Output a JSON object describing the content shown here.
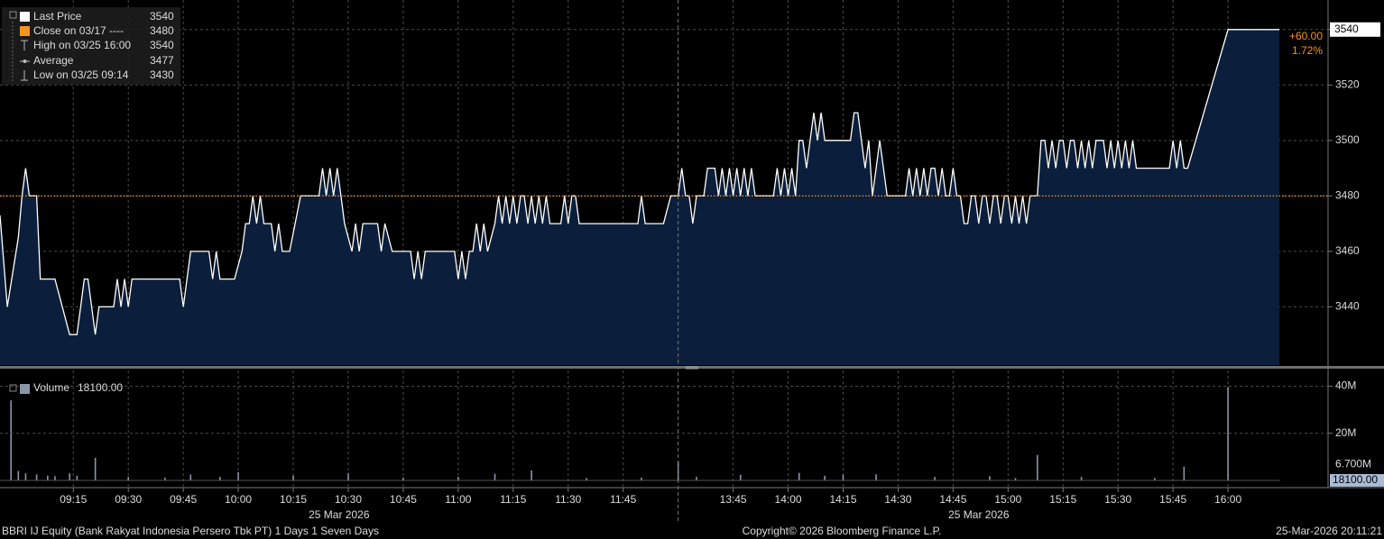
{
  "chart_data": [
    {
      "type": "area",
      "legend": [
        {
          "name": "Last Price",
          "value": 3540
        },
        {
          "name": "Close on 03/17 ----",
          "value": 3480
        },
        {
          "name": "High on 03/25 16:00",
          "value": 3540
        },
        {
          "name": "Average",
          "value": 3477
        },
        {
          "name": "Low on 03/25 09:14",
          "value": 3430
        }
      ],
      "change": {
        "value": 60,
        "label": "+60.00"
      },
      "change_pct": {
        "value": 1.72,
        "label": "1.72%"
      },
      "xlim": [
        "08:55",
        "16:14"
      ],
      "xbreak": [
        "12:00",
        "13:30"
      ],
      "ylim": [
        3419,
        3550
      ],
      "yticks": [
        3440,
        3460,
        3480,
        3500,
        3520,
        3540
      ],
      "grid": true,
      "x": [
        "08:55",
        "08:57",
        "09:00",
        "09:01",
        "09:02",
        "09:03",
        "09:05",
        "09:06",
        "09:10",
        "09:14",
        "09:16",
        "09:17",
        "09:18",
        "09:19",
        "09:20",
        "09:21",
        "09:22",
        "09:26",
        "09:27",
        "09:28",
        "09:29",
        "09:30",
        "09:31",
        "09:44",
        "09:45",
        "09:47",
        "09:52",
        "09:53",
        "09:54",
        "09:55",
        "09:59",
        "10:01",
        "10:02",
        "10:03",
        "10:04",
        "10:05",
        "10:06",
        "10:07",
        "10:09",
        "10:10",
        "10:11",
        "10:12",
        "10:14",
        "10:17",
        "10:22",
        "10:23",
        "10:24",
        "10:25",
        "10:26",
        "10:27",
        "10:28",
        "10:29",
        "10:31",
        "10:32",
        "10:33",
        "10:34",
        "10:38",
        "10:39",
        "10:40",
        "10:42",
        "10:44",
        "10:47",
        "10:48",
        "10:49",
        "10:50",
        "10:51",
        "10:59",
        "11:00",
        "11:01",
        "11:02",
        "11:03",
        "11:04",
        "11:05",
        "11:06",
        "11:07",
        "11:08",
        "11:10",
        "11:11",
        "11:12",
        "11:13",
        "11:14",
        "11:15",
        "11:16",
        "11:17",
        "11:18",
        "11:19",
        "11:20",
        "11:21",
        "11:22",
        "11:23",
        "11:24",
        "11:25",
        "11:28",
        "11:29",
        "11:30",
        "11:31",
        "11:32",
        "11:33",
        "11:49",
        "11:50",
        "11:51",
        "11:56",
        "11:58",
        "12:00",
        "13:30",
        "13:31",
        "13:32",
        "13:33",
        "13:34",
        "13:35",
        "13:37",
        "13:38",
        "13:40",
        "13:41",
        "13:42",
        "13:43",
        "13:44",
        "13:45",
        "13:46",
        "13:47",
        "13:48",
        "13:49",
        "13:50",
        "13:51",
        "13:56",
        "13:57",
        "13:58",
        "13:59",
        "14:00",
        "14:01",
        "14:02",
        "14:03",
        "14:04",
        "14:05",
        "14:06",
        "14:07",
        "14:08",
        "14:09",
        "14:10",
        "14:17",
        "14:18",
        "14:19",
        "14:20",
        "14:21",
        "14:22",
        "14:23",
        "14:24",
        "14:25",
        "14:26",
        "14:27",
        "14:32",
        "14:33",
        "14:34",
        "14:35",
        "14:36",
        "14:37",
        "14:38",
        "14:39",
        "14:40",
        "14:41",
        "14:42",
        "14:43",
        "14:44",
        "14:45",
        "14:46",
        "14:47",
        "14:48",
        "14:49",
        "14:50",
        "14:51",
        "14:52",
        "14:53",
        "14:54",
        "14:55",
        "14:56",
        "14:57",
        "14:58",
        "14:59",
        "15:00",
        "15:01",
        "15:02",
        "15:03",
        "15:04",
        "15:05",
        "15:06",
        "15:08",
        "15:09",
        "15:10",
        "15:11",
        "15:12",
        "15:13",
        "15:14",
        "15:15",
        "15:16",
        "15:17",
        "15:18",
        "15:19",
        "15:20",
        "15:21",
        "15:22",
        "15:23",
        "15:24",
        "15:26",
        "15:27",
        "15:28",
        "15:29",
        "15:30",
        "15:31",
        "15:32",
        "15:33",
        "15:34",
        "15:35",
        "15:44",
        "15:45",
        "15:46",
        "15:47",
        "15:48",
        "15:49",
        "16:00",
        "16:14"
      ],
      "series": [
        {
          "name": "Last Price",
          "color": "#ffffff",
          "fill": "#0b1f3c",
          "values": [
            3473,
            3440,
            3465,
            3480,
            3490,
            3480,
            3480,
            3450,
            3450,
            3430,
            3430,
            3440,
            3450,
            3450,
            3440,
            3430,
            3440,
            3440,
            3450,
            3440,
            3450,
            3440,
            3450,
            3450,
            3440,
            3460,
            3460,
            3450,
            3460,
            3450,
            3450,
            3460,
            3470,
            3470,
            3480,
            3470,
            3480,
            3470,
            3470,
            3460,
            3470,
            3460,
            3460,
            3480,
            3480,
            3490,
            3480,
            3490,
            3480,
            3490,
            3480,
            3470,
            3460,
            3470,
            3460,
            3470,
            3470,
            3460,
            3470,
            3460,
            3460,
            3460,
            3450,
            3460,
            3450,
            3460,
            3460,
            3450,
            3460,
            3450,
            3460,
            3460,
            3470,
            3460,
            3470,
            3460,
            3470,
            3480,
            3470,
            3480,
            3470,
            3480,
            3470,
            3480,
            3480,
            3470,
            3480,
            3470,
            3480,
            3470,
            3480,
            3470,
            3470,
            3480,
            3470,
            3480,
            3480,
            3470,
            3470,
            3480,
            3470,
            3470,
            3480,
            3480,
            3480,
            3490,
            3480,
            3480,
            3470,
            3480,
            3480,
            3490,
            3490,
            3480,
            3490,
            3480,
            3490,
            3480,
            3490,
            3480,
            3490,
            3480,
            3490,
            3480,
            3480,
            3490,
            3480,
            3490,
            3480,
            3490,
            3480,
            3500,
            3500,
            3490,
            3500,
            3510,
            3500,
            3510,
            3500,
            3500,
            3510,
            3510,
            3500,
            3490,
            3500,
            3480,
            3490,
            3500,
            3490,
            3480,
            3480,
            3490,
            3480,
            3490,
            3480,
            3490,
            3480,
            3490,
            3490,
            3480,
            3490,
            3480,
            3480,
            3490,
            3480,
            3480,
            3470,
            3470,
            3480,
            3480,
            3470,
            3480,
            3480,
            3470,
            3480,
            3480,
            3470,
            3480,
            3480,
            3470,
            3480,
            3470,
            3480,
            3470,
            3480,
            3480,
            3500,
            3500,
            3490,
            3500,
            3490,
            3500,
            3500,
            3490,
            3500,
            3500,
            3490,
            3500,
            3490,
            3500,
            3490,
            3500,
            3500,
            3490,
            3500,
            3490,
            3500,
            3490,
            3500,
            3490,
            3500,
            3490,
            3490,
            3500,
            3490,
            3500,
            3490,
            3490,
            3540,
            3540
          ]
        }
      ],
      "close_color": "#f7941d"
    },
    {
      "type": "bar",
      "legend": {
        "name": "Volume",
        "value": {
          "value": 18100,
          "label": "18100.00"
        }
      },
      "ma_label": {
        "value": 6700000,
        "label": "6.700M"
      },
      "ylim": [
        0,
        44000000
      ],
      "yticks": [
        {
          "value": 20000000,
          "label": "20M"
        },
        {
          "value": 40000000,
          "label": "40M"
        }
      ],
      "xticks": [
        "09:15",
        "09:30",
        "09:45",
        "10:00",
        "10:15",
        "10:30",
        "10:45",
        "11:00",
        "11:15",
        "11:30",
        "11:45",
        "13:45",
        "14:00",
        "14:15",
        "14:30",
        "14:45",
        "15:00",
        "15:15",
        "15:30",
        "15:45",
        "16:00"
      ],
      "date_labels": [
        "25 Mar 2026",
        "25 Mar 2026"
      ],
      "color": "#8a96a8",
      "x": [
        "08:58",
        "09:00",
        "09:02",
        "09:05",
        "09:08",
        "09:10",
        "09:14",
        "09:16",
        "09:21",
        "09:30",
        "09:40",
        "09:47",
        "09:55",
        "10:00",
        "10:15",
        "10:30",
        "10:45",
        "11:00",
        "11:10",
        "11:20",
        "11:35",
        "11:50",
        "12:00",
        "13:35",
        "13:47",
        "14:03",
        "14:10",
        "14:15",
        "14:24",
        "14:40",
        "14:55",
        "15:02",
        "15:08",
        "15:20",
        "15:40",
        "15:48",
        "16:00",
        "16:14"
      ],
      "values": [
        34000000,
        4000000,
        3000000,
        2500000,
        2000000,
        1800000,
        3000000,
        2000000,
        9600000,
        1500000,
        1200000,
        2500000,
        1500000,
        3500000,
        2000000,
        3000000,
        1200000,
        1500000,
        2800000,
        4200000,
        1000000,
        1200000,
        8000000,
        1500000,
        2400000,
        3200000,
        2000000,
        2500000,
        2600000,
        1500000,
        1800000,
        1000000,
        10800000,
        1500000,
        1000000,
        5800000,
        39600000,
        18100
      ]
    }
  ],
  "footer": {
    "left": "BBRI IJ Equity (Bank Rakyat Indonesia Persero Tbk PT) 1 Days 1 Seven Days",
    "center": "Copyright© 2026 Bloomberg Finance L.P.",
    "right": "25-Mar-2026 20:11:21"
  }
}
